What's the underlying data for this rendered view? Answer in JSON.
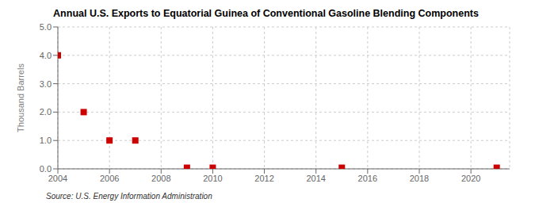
{
  "chart_data": {
    "type": "scatter",
    "title": "Annual U.S. Exports to Equatorial Guinea of Conventional Gasoline Blending Components",
    "y_label": "Thousand Barrels",
    "annotation": "Source: U.S. Energy Information Administration",
    "x": [
      2004,
      2005,
      2006,
      2007,
      2009,
      2010,
      2015,
      2021
    ],
    "values": [
      4.0,
      2.0,
      1.0,
      1.0,
      0.04,
      0.04,
      0.04,
      0.04
    ],
    "xlim": [
      2004,
      2021.5
    ],
    "ylim": [
      0.0,
      5.0
    ],
    "xticks": [
      2004,
      2006,
      2008,
      2010,
      2012,
      2014,
      2016,
      2018,
      2020
    ],
    "yticks": [
      {
        "value": 0,
        "label": "0.0"
      },
      {
        "value": 1,
        "label": "1.0"
      },
      {
        "value": 2,
        "label": "2.0"
      },
      {
        "value": 3,
        "label": "3.0"
      },
      {
        "value": 4,
        "label": "4.0"
      },
      {
        "value": 5,
        "label": "5.0"
      }
    ],
    "color": "#cc0000",
    "marker": "square",
    "grid": true
  }
}
